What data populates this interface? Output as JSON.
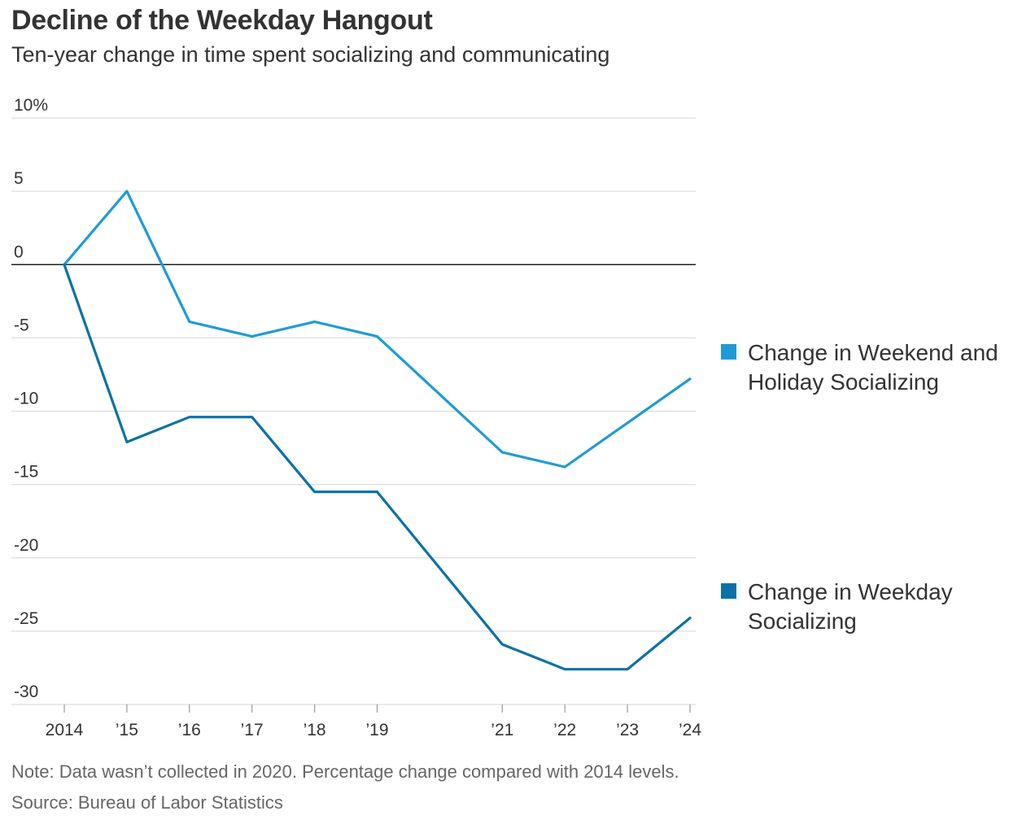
{
  "header": {
    "title": "Decline of the Weekday Hangout",
    "subtitle": "Ten-year change in time spent socializing and communicating"
  },
  "footer": {
    "note": "Note: Data wasn’t collected in 2020. Percentage change compared with 2014 levels.",
    "source": "Source: Bureau of Labor Statistics"
  },
  "colors": {
    "weekend": "#1e9bd7",
    "weekday": "#0a72a6",
    "grid": "#dddddd",
    "zero_line": "#222222",
    "axis": "#999999"
  },
  "chart_data": {
    "type": "line",
    "title": "Decline of the Weekday Hangout",
    "subtitle": "Ten-year change in time spent socializing and communicating",
    "xlabel": "",
    "ylabel": "",
    "x": [
      2014,
      2015,
      2016,
      2017,
      2018,
      2019,
      2021,
      2022,
      2023,
      2024
    ],
    "x_tick_labels": [
      "2014",
      "’15",
      "’16",
      "’17",
      "’18",
      "’19",
      "’21",
      "’22",
      "’23",
      "’24"
    ],
    "ylim": [
      -30,
      10
    ],
    "y_ticks": [
      10,
      5,
      0,
      -5,
      -10,
      -15,
      -20,
      -25,
      -30
    ],
    "y_tick_labels": [
      "10%",
      "5",
      "0",
      "-5",
      "-10",
      "-15",
      "-20",
      "-25",
      "-30"
    ],
    "grid": true,
    "legend_position": "right",
    "series": [
      {
        "name": "Change in Weekend and Holiday Socializing",
        "legend_lines": [
          "Change in Weekend and",
          "Holiday Socializing"
        ],
        "color_key": "weekend",
        "values": [
          0,
          5,
          -3.9,
          -4.9,
          -3.9,
          -4.9,
          -12.8,
          -13.8,
          -10.8,
          -7.8
        ]
      },
      {
        "name": "Change in Weekday Socializing",
        "legend_lines": [
          "Change in Weekday",
          "Socializing"
        ],
        "color_key": "weekday",
        "values": [
          0,
          -12.1,
          -10.4,
          -10.4,
          -15.5,
          -15.5,
          -25.9,
          -27.6,
          -27.6,
          -24.1
        ]
      }
    ]
  }
}
